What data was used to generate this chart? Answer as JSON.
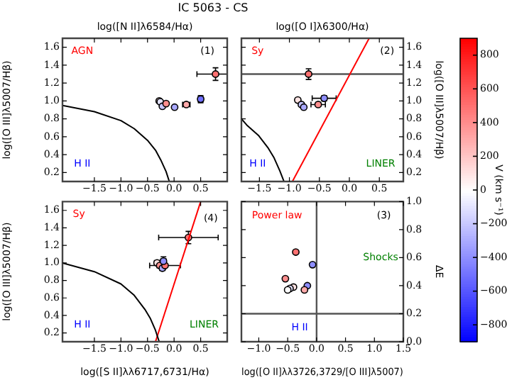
{
  "chart_data": [
    {
      "type": "scatter",
      "title": "IC 5063 - CS",
      "xlabel": "log([N II]λ6584/Hα)",
      "ylabel": "log([O III]λ5007/Hβ)",
      "xlim": [
        -2.1,
        1.0
      ],
      "xticks": [
        {
          "value": -1.5,
          "label": "−1.5"
        },
        {
          "value": -1.0,
          "label": "−1.0"
        },
        {
          "value": -0.5,
          "label": "−0.5"
        },
        {
          "value": 0,
          "label": "0.0"
        },
        {
          "value": 0.5,
          "label": "0.5"
        }
      ],
      "ylim": [
        0.1,
        1.7
      ],
      "yticks": [
        {
          "value": 0.2,
          "label": "0.2"
        },
        {
          "value": 0.4,
          "label": "0.4"
        },
        {
          "value": 0.6,
          "label": "0.6"
        },
        {
          "value": 0.8,
          "label": "0.8"
        },
        {
          "value": 1.0,
          "label": "1.0"
        },
        {
          "value": 1.2,
          "label": "1.2"
        },
        {
          "value": 1.4,
          "label": "1.4"
        },
        {
          "value": 1.6,
          "label": "1.6"
        }
      ],
      "series": [
        {
          "type": "line",
          "marker": "none",
          "color": "#000000",
          "x": [
            -2.1,
            -1.5,
            -1.0,
            -0.75,
            -0.5,
            -0.35,
            -0.25,
            -0.15,
            -0.09
          ],
          "values": [
            0.95,
            0.88,
            0.78,
            0.69,
            0.56,
            0.45,
            0.34,
            0.21,
            0.1
          ]
        },
        {
          "type": "scatter",
          "marker": "circle",
          "x": [
            -0.28,
            -0.26,
            -0.22,
            -0.15,
            0.01,
            0.23,
            0.5,
            0.78
          ],
          "values": [
            1.0,
            0.99,
            0.94,
            0.97,
            0.93,
            0.96,
            1.02,
            1.3
          ],
          "colors": [
            "#ffe3e3",
            "#e3e3ff",
            "#c6c6ff",
            "#ff8e8e",
            "#aaaaff",
            "#ffaaaa",
            "#7171ff",
            "#ff7171"
          ],
          "errors": [
            0.02,
            0.02,
            0.02,
            0.02,
            0.02,
            0.02,
            0.04,
            0.07
          ],
          "xerrors": [
            0.03,
            0.03,
            0.03,
            0.03,
            0.03,
            0.07,
            0.05,
            0.35
          ]
        }
      ],
      "annotations": [
        "AGN",
        "H II",
        "(1)"
      ]
    },
    {
      "type": "scatter",
      "xlabel": "log([O I]λ6300/Hα)",
      "ylabel": "log([O III]λ5007/Hβ)",
      "clim": [
        -900,
        900
      ],
      "clabel": "V (km s⁻¹)",
      "cticks": [
        {
          "value": -800,
          "label": "−800"
        },
        {
          "value": -600,
          "label": "−600"
        },
        {
          "value": -400,
          "label": "−400"
        },
        {
          "value": -200,
          "label": "−200"
        },
        {
          "value": 0,
          "label": "0"
        },
        {
          "value": 200,
          "label": "200"
        },
        {
          "value": 400,
          "label": "400"
        },
        {
          "value": 600,
          "label": "600"
        },
        {
          "value": 800,
          "label": "800"
        }
      ],
      "xlim": [
        -1.8,
        0.9
      ],
      "xticks": [
        {
          "value": -1.5,
          "label": "−1.5"
        },
        {
          "value": -1.0,
          "label": "−1.0"
        },
        {
          "value": -0.5,
          "label": "−0.5"
        },
        {
          "value": 0,
          "label": "0.0"
        },
        {
          "value": 0.5,
          "label": "0.5"
        }
      ],
      "ylim": [
        0.1,
        1.7
      ],
      "yticks": [
        {
          "value": 0.2,
          "label": "0.2"
        },
        {
          "value": 0.4,
          "label": "0.4"
        },
        {
          "value": 0.6,
          "label": "0.6"
        },
        {
          "value": 0.8,
          "label": "0.8"
        },
        {
          "value": 1.0,
          "label": "1.0"
        },
        {
          "value": 1.2,
          "label": "1.2"
        },
        {
          "value": 1.4,
          "label": "1.4"
        },
        {
          "value": 1.6,
          "label": "1.6"
        }
      ],
      "ref_lines": [
        {
          "axis": "y",
          "value": 1.3,
          "color": "#555555"
        }
      ],
      "series": [
        {
          "type": "line",
          "marker": "none",
          "color": "#000000",
          "x": [
            -1.8,
            -1.71,
            -1.51,
            -1.36,
            -1.26,
            -1.16,
            -1.09
          ],
          "values": [
            0.8,
            0.73,
            0.61,
            0.48,
            0.37,
            0.22,
            0.1
          ]
        },
        {
          "type": "line",
          "marker": "none",
          "color": "#ff0000",
          "x": [
            -0.95,
            0.33
          ],
          "values": [
            0.1,
            1.7
          ]
        },
        {
          "type": "scatter",
          "marker": "circle",
          "x": [
            -0.86,
            -0.8,
            -0.76,
            -0.52,
            -0.42,
            -0.68
          ],
          "values": [
            1.01,
            0.96,
            0.93,
            0.96,
            1.03,
            1.3
          ],
          "colors": [
            "#ffe3e3",
            "#c6c6ff",
            "#aaaaff",
            "#ff8e8e",
            "#8e8eff",
            "#ff7171"
          ],
          "errors": [
            0.02,
            0.02,
            0.02,
            0.02,
            0.03,
            0.06
          ],
          "xerrors": [
            0.03,
            0.03,
            0.03,
            0.12,
            0.2,
            0.03
          ]
        }
      ],
      "annotations": [
        "Sy",
        "H II",
        "LINER",
        "(2)"
      ]
    },
    {
      "type": "scatter",
      "xlabel": "log([S II]λλ6717,6731/Hα)",
      "ylabel": "log([O III]λ5007/Hβ)",
      "xlim": [
        -2.1,
        1.0
      ],
      "xticks": [
        {
          "value": -1.5,
          "label": "−1.5"
        },
        {
          "value": -1.0,
          "label": "−1.0"
        },
        {
          "value": -0.5,
          "label": "−0.5"
        },
        {
          "value": 0,
          "label": "0.0"
        },
        {
          "value": 0.5,
          "label": "0.5"
        }
      ],
      "ylim": [
        0.1,
        1.7
      ],
      "yticks": [
        {
          "value": 0.2,
          "label": "0.2"
        },
        {
          "value": 0.4,
          "label": "0.4"
        },
        {
          "value": 0.6,
          "label": "0.6"
        },
        {
          "value": 0.8,
          "label": "0.8"
        },
        {
          "value": 1.0,
          "label": "1.0"
        },
        {
          "value": 1.2,
          "label": "1.2"
        },
        {
          "value": 1.4,
          "label": "1.4"
        },
        {
          "value": 1.6,
          "label": "1.6"
        }
      ],
      "series": [
        {
          "type": "line",
          "marker": "none",
          "color": "#000000",
          "x": [
            -2.1,
            -1.5,
            -1.0,
            -0.75,
            -0.55,
            -0.45,
            -0.35,
            -0.28
          ],
          "values": [
            1.0,
            0.9,
            0.76,
            0.63,
            0.47,
            0.37,
            0.23,
            0.1
          ]
        },
        {
          "type": "line",
          "marker": "none",
          "color": "#ff0000",
          "x": [
            -0.35,
            0.5
          ],
          "values": [
            0.1,
            1.7
          ]
        },
        {
          "type": "scatter",
          "marker": "circle",
          "x": [
            -0.32,
            -0.27,
            -0.22,
            -0.17,
            -0.2,
            0.27
          ],
          "values": [
            1.0,
            0.97,
            0.94,
            0.97,
            1.02,
            1.29
          ],
          "colors": [
            "#ffe3e3",
            "#ff8e8e",
            "#aaaaff",
            "#ff7171",
            "#8e8eff",
            "#ff7171"
          ],
          "errors": [
            0.02,
            0.02,
            0.02,
            0.02,
            0.05,
            0.07
          ],
          "xerrors": [
            0.05,
            0.05,
            0.05,
            0.29,
            0.05,
            0.56
          ]
        }
      ],
      "annotations": [
        "Sy",
        "H II",
        "LINER",
        "(4)"
      ]
    },
    {
      "type": "scatter",
      "xlabel": "log([O II]λλ3726,3729/[O III]λ5007)",
      "ylabel": "ΔE",
      "xlim": [
        -1.3,
        1.5
      ],
      "xticks": [
        {
          "value": -1.0,
          "label": "−1.0"
        },
        {
          "value": -0.5,
          "label": "−0.5"
        },
        {
          "value": 0,
          "label": "0.0"
        },
        {
          "value": 0.5,
          "label": "0.5"
        },
        {
          "value": 1.0,
          "label": "1.0"
        },
        {
          "value": 1.5,
          "label": "1.5"
        }
      ],
      "ylim": [
        0,
        1
      ],
      "yticks": [
        {
          "value": 0,
          "label": "0.0"
        },
        {
          "value": 0.2,
          "label": "0.2"
        },
        {
          "value": 0.4,
          "label": "0.4"
        },
        {
          "value": 0.6,
          "label": "0.6"
        },
        {
          "value": 0.8,
          "label": "0.8"
        },
        {
          "value": 1.0,
          "label": "1.0"
        }
      ],
      "ref_lines": [
        {
          "axis": "y",
          "value": 0.2,
          "color": "#555555"
        },
        {
          "axis": "x",
          "value": 0,
          "color": "#555555"
        }
      ],
      "series": [
        {
          "type": "scatter",
          "marker": "circle",
          "x": [
            -0.36,
            -0.07,
            -0.54,
            -0.16,
            -0.21,
            -0.4,
            -0.46,
            -0.5
          ],
          "values": [
            0.64,
            0.55,
            0.45,
            0.4,
            0.37,
            0.39,
            0.38,
            0.37
          ],
          "colors": [
            "#ff7171",
            "#8e8eff",
            "#ff8e8e",
            "#8e8eff",
            "#ffaaaa",
            "#ffe3e3",
            "#e3e3ff",
            "#ffffff"
          ]
        }
      ],
      "annotations": [
        "Power law",
        "Shocks",
        "H II",
        "(3)"
      ]
    }
  ]
}
